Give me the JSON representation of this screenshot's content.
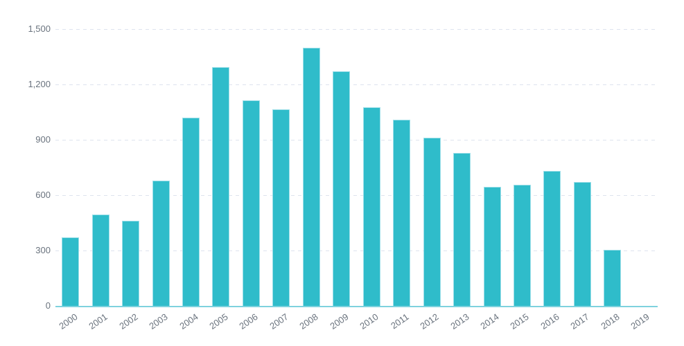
{
  "chart_data": {
    "type": "bar",
    "title": "",
    "xlabel": "",
    "ylabel": "",
    "categories": [
      "2000",
      "2001",
      "2002",
      "2003",
      "2004",
      "2005",
      "2006",
      "2007",
      "2008",
      "2009",
      "2010",
      "2011",
      "2012",
      "2013",
      "2014",
      "2015",
      "2016",
      "2017",
      "2018",
      "2019"
    ],
    "values": [
      370,
      495,
      460,
      680,
      1020,
      1295,
      1115,
      1065,
      1400,
      1270,
      1075,
      1010,
      910,
      830,
      645,
      655,
      730,
      670,
      305,
      0
    ],
    "ylim": [
      0,
      1500
    ],
    "yticks": [
      0,
      300,
      600,
      900,
      1200,
      1500
    ],
    "ytick_labels": [
      "0",
      "300",
      "600",
      "900",
      "1,200",
      "1,500"
    ],
    "grid": "horizontal-dashed",
    "legend_position": "none"
  },
  "colors": {
    "bar_fill": "#2fbcca",
    "bar_edge": "#9edfe9",
    "axis_line": "#7ed2de",
    "gridline": "#dde3ee",
    "label_text": "#6a737e",
    "background": "#ffffff"
  }
}
